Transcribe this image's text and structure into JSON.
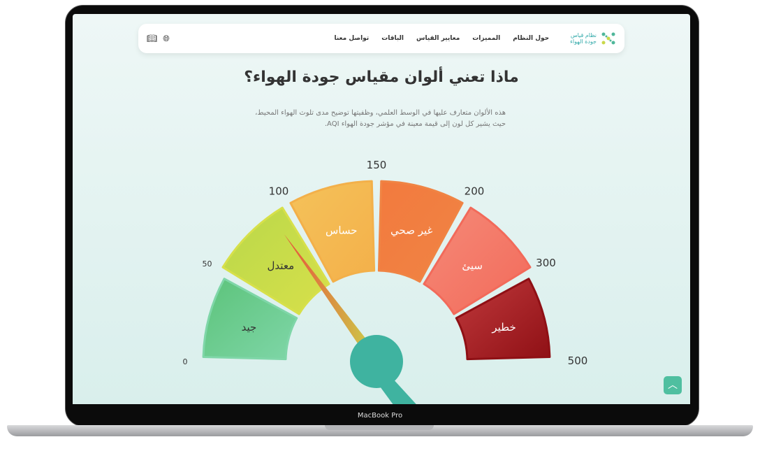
{
  "device_label": "MacBook Pro",
  "nav": {
    "logo": {
      "line1": "نظام قياس",
      "line2": "جودة الهواء"
    },
    "items": [
      {
        "label": "حول النظام"
      },
      {
        "label": "المميزات"
      },
      {
        "label": "معايير القياس"
      },
      {
        "label": "الباقات"
      },
      {
        "label": "تواصل معنا"
      }
    ],
    "icons": [
      "globe-icon",
      "book-icon"
    ]
  },
  "title": "ماذا تعني ألوان مقياس جودة الهواء؟",
  "description": "هذه الألوان متعارف عليها في الوسط العلمي، وظفيتها توضيح مدى تلوث الهواء المحيط، حيث يشير كل لون إلى قيمة معينة في مؤشر جودة الهواء AQI.",
  "gauge": {
    "segments": [
      {
        "label": "جيد",
        "color": "#7fd6a8",
        "color2": "#5cc37a"
      },
      {
        "label": "معتدل",
        "color": "#d7e04a",
        "color2": "#b9d84a"
      },
      {
        "label": "حساس",
        "color": "#f3b04a",
        "color2": "#f5c25a"
      },
      {
        "label": "غير صحي",
        "color": "#f08444",
        "color2": "#f27a3e"
      },
      {
        "label": "سيئ",
        "color": "#f26a5a",
        "color2": "#f58a78"
      },
      {
        "label": "خطير",
        "color": "#8f1015",
        "color2": "#c0393c"
      }
    ],
    "ticks": [
      "0",
      "50",
      "100",
      "150",
      "200",
      "300",
      "500"
    ],
    "needle_value": 90,
    "hub_color": "#3fb3a0"
  },
  "scroll_top_icon": "chevron-up-icon"
}
